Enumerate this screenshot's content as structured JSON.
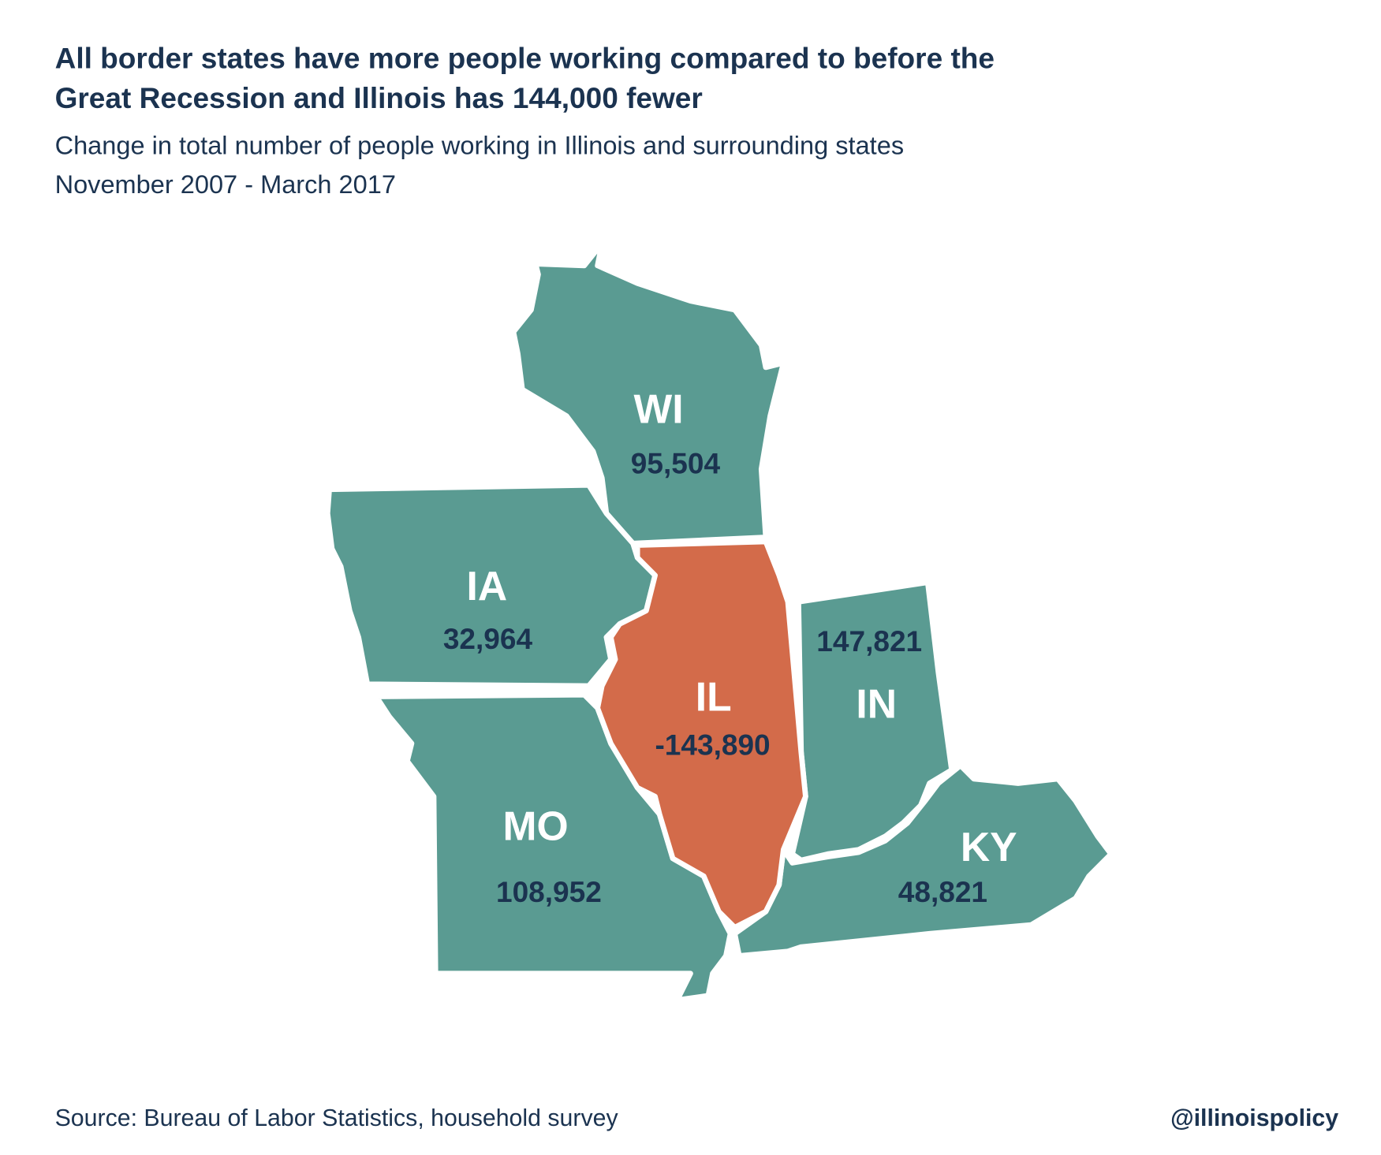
{
  "header": {
    "title": [
      "All border states have more people working compared to before the",
      "Great Recession and Illinois has 144,000 fewer"
    ],
    "subtitle": [
      "Change in total number of people working in Illinois and surrounding states",
      "November 2007 - March 2017"
    ]
  },
  "states": [
    {
      "abbr": "WI",
      "value": "95,504",
      "color": "#5a9b92"
    },
    {
      "abbr": "IA",
      "value": "32,964",
      "color": "#5a9b92"
    },
    {
      "abbr": "MO",
      "value": "108,952",
      "color": "#5a9b92"
    },
    {
      "abbr": "KY",
      "value": "48,821",
      "color": "#5a9b92"
    },
    {
      "abbr": "IN",
      "value": "147,821",
      "color": "#5a9b92"
    },
    {
      "abbr": "IL",
      "value": "-143,890",
      "color": "#d36b4a"
    }
  ],
  "footer": {
    "source": "Source: Bureau of Labor Statistics, household survey",
    "handle": "@illinoispolicy"
  }
}
